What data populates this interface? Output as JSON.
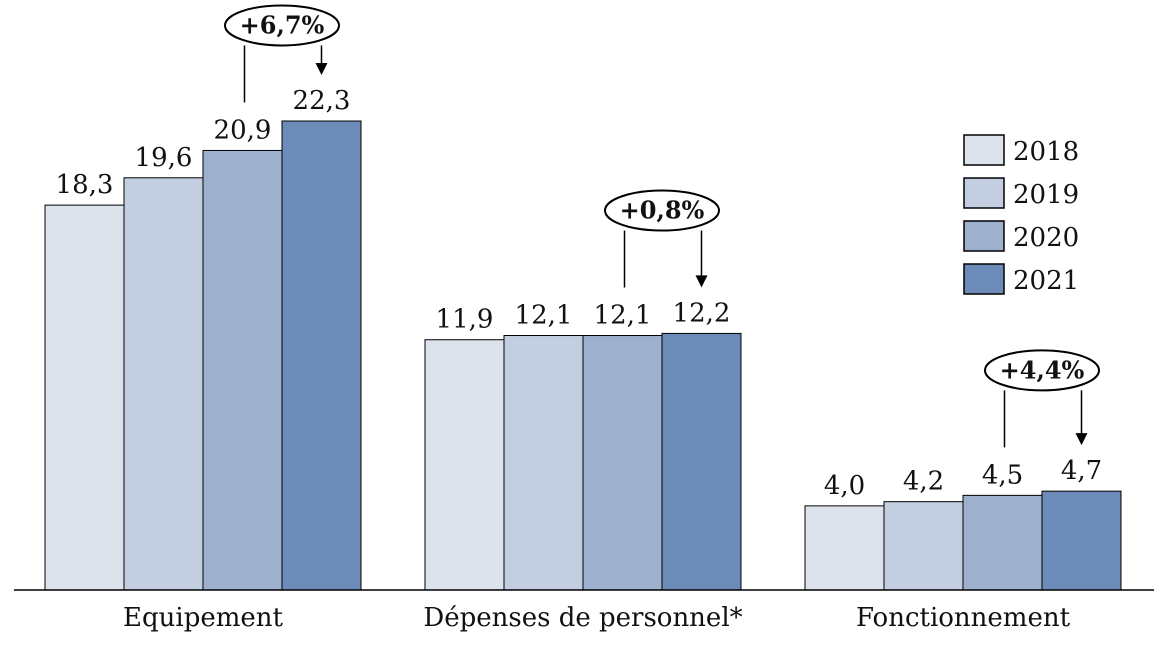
{
  "chart_data": {
    "type": "bar",
    "categories": [
      "Equipement",
      "Dépenses de personnel*",
      "Fonctionnement"
    ],
    "series": [
      {
        "name": "2018",
        "values": [
          18.3,
          11.9,
          4.0
        ],
        "labels": [
          "18,3",
          "11,9",
          "4,0"
        ],
        "color": "#DDE3ED"
      },
      {
        "name": "2019",
        "values": [
          19.6,
          12.1,
          4.2
        ],
        "labels": [
          "19,6",
          "12,1",
          "4,2"
        ],
        "color": "#C3CEE0"
      },
      {
        "name": "2020",
        "values": [
          20.9,
          12.1,
          4.5
        ],
        "labels": [
          "20,9",
          "12,1",
          "4,5"
        ],
        "color": "#9DB0CE"
      },
      {
        "name": "2021",
        "values": [
          22.3,
          12.2,
          4.7
        ],
        "labels": [
          "22,3",
          "12,2",
          "4,7"
        ],
        "color": "#6C8BB8"
      }
    ],
    "annotations": [
      "+6,7%",
      "+0,8%",
      "+4,4%"
    ],
    "legend_position": "right",
    "grid": false
  }
}
